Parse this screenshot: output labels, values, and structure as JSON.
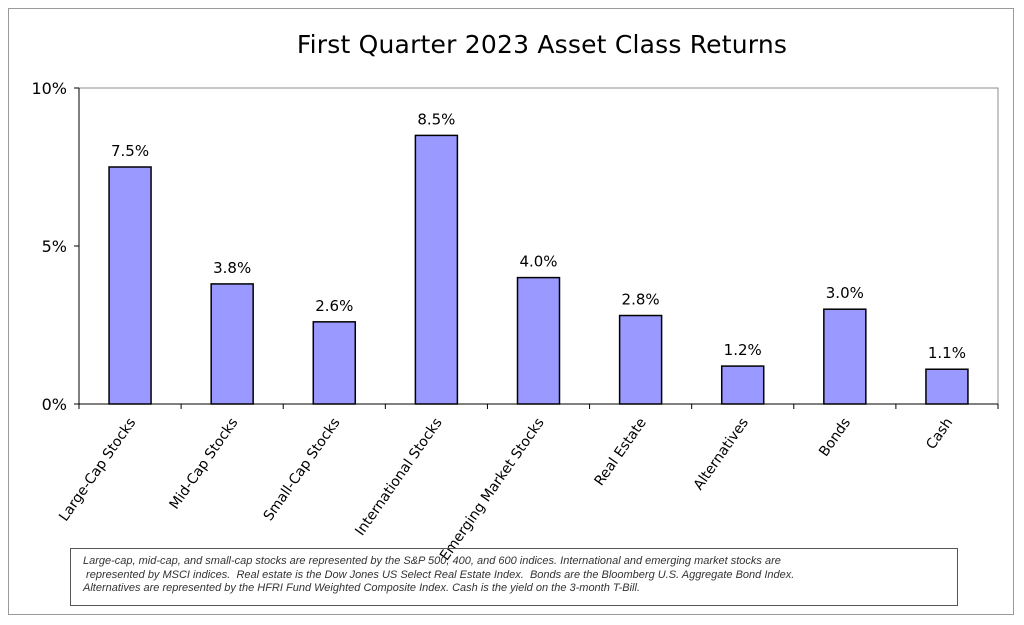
{
  "chart_data": {
    "type": "bar",
    "title": "First Quarter 2023 Asset Class Returns",
    "categories": [
      "Large-Cap Stocks",
      "Mid-Cap Stocks",
      "Small-Cap Stocks",
      "International Stocks",
      "Emerging Market Stocks",
      "Real Estate",
      "Alternatives",
      "Bonds",
      "Cash"
    ],
    "values": [
      7.5,
      3.8,
      2.6,
      8.5,
      4.0,
      2.8,
      1.2,
      3.0,
      1.1
    ],
    "data_labels": [
      "7.5%",
      "3.8%",
      "2.6%",
      "8.5%",
      "4.0%",
      "2.8%",
      "1.2%",
      "3.0%",
      "1.1%"
    ],
    "yticks": [
      0,
      5,
      10
    ],
    "ytick_labels": [
      "0%",
      "5%",
      "10%"
    ],
    "ylim": [
      0,
      10
    ],
    "xlabel": "",
    "ylabel": "",
    "grid": false,
    "bar_color": "#9999ff",
    "bar_border_color": "#000000"
  },
  "footnote": {
    "lines": [
      "Large-cap, mid-cap, and small-cap stocks are represented by the S&P 500, 400, and 600 indices.  International and emerging market stocks are",
      " represented by MSCI indices.  Real estate is the Dow Jones US Select Real Estate Index.  Bonds are the Bloomberg U.S. Aggregate Bond Index.",
      "Alternatives are represented by the HFRI Fund Weighted Composite Index.  Cash is the yield on the 3-month T-Bill."
    ]
  }
}
